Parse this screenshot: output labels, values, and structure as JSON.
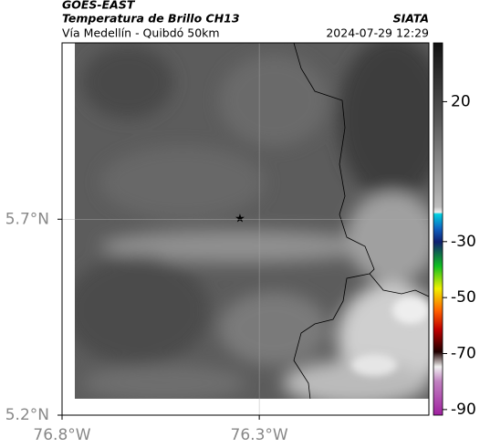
{
  "header": {
    "title": "GOES-EAST",
    "subtitle": "Temperatura de Brillo CH13",
    "region": "Vía Medellín - Quibdó 50km",
    "source": "SIATA",
    "timestamp": "2024-07-29 12:29"
  },
  "map": {
    "xlim": [
      -76.8,
      -75.87
    ],
    "ylim": [
      5.2,
      6.15
    ],
    "xticks": [
      {
        "value": -76.8,
        "label": "76.8°W"
      },
      {
        "value": -76.3,
        "label": "76.3°W"
      }
    ],
    "yticks": [
      {
        "value": 5.2,
        "label": "5.2°N"
      },
      {
        "value": 5.7,
        "label": "5.7°N"
      }
    ],
    "grid": true
  },
  "colorbar": {
    "lim": [
      -92,
      41
    ],
    "ticks": [
      20,
      -30,
      -50,
      -70,
      -90
    ]
  }
}
